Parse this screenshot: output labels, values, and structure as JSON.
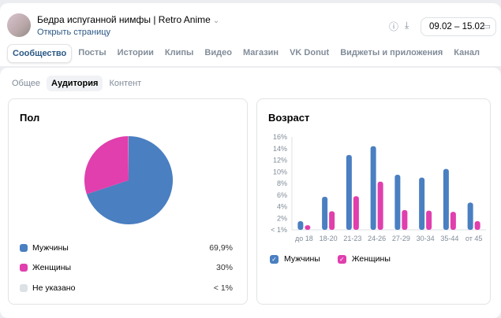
{
  "header": {
    "title": "Бедра испуганной нимфы | Retro Anime",
    "open_link": "Открыть страницу",
    "date_range": "09.02 – 15.02"
  },
  "tabs": [
    "Сообщество",
    "Посты",
    "Истории",
    "Клипы",
    "Видео",
    "Магазин",
    "VK Donut",
    "Виджеты и приложения",
    "Канал"
  ],
  "subtabs": [
    "Общее",
    "Аудитория",
    "Контент"
  ],
  "gender": {
    "title": "Пол",
    "items": [
      {
        "label": "Мужчины",
        "value": "69,9%",
        "color": "#4a7fc1"
      },
      {
        "label": "Женщины",
        "value": "30%",
        "color": "#e03fad"
      },
      {
        "label": "Не указано",
        "value": "< 1%",
        "color": "#dce1e6"
      }
    ]
  },
  "chart_data": {
    "type": "bar",
    "title": "Возраст",
    "categories": [
      "до 18",
      "18-20",
      "21-23",
      "24-26",
      "27-29",
      "30-34",
      "35-44",
      "от 45"
    ],
    "series": [
      {
        "name": "Мужчины",
        "color": "#4a7fc1",
        "values": [
          1.5,
          5.7,
          12.9,
          14.4,
          9.5,
          9.0,
          10.5,
          4.7
        ]
      },
      {
        "name": "Женщины",
        "color": "#e03fad",
        "values": [
          0.8,
          3.2,
          5.8,
          8.3,
          3.4,
          3.3,
          3.1,
          1.5
        ]
      }
    ],
    "yticks": [
      "< 1%",
      "2%",
      "4%",
      "6%",
      "8%",
      "10%",
      "12%",
      "14%",
      "16%"
    ],
    "ylim": [
      0,
      16
    ]
  }
}
